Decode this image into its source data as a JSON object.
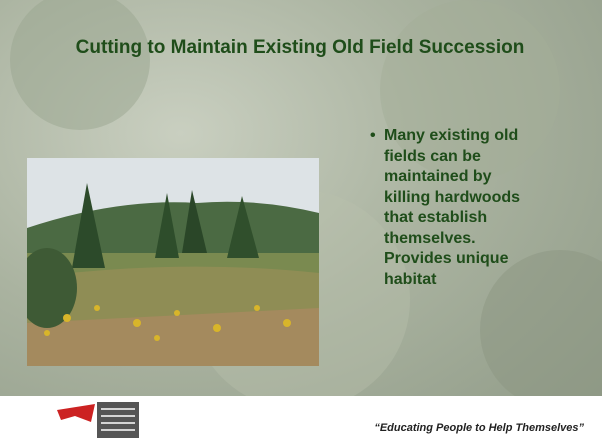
{
  "title": "Cutting to Maintain Existing Old Field Succession",
  "bullet": "Many existing old fields can be maintained by killing hardwoods that establish themselves. Provides unique habitat",
  "footer": {
    "quote": "“Educating People to Help Themselves”"
  }
}
